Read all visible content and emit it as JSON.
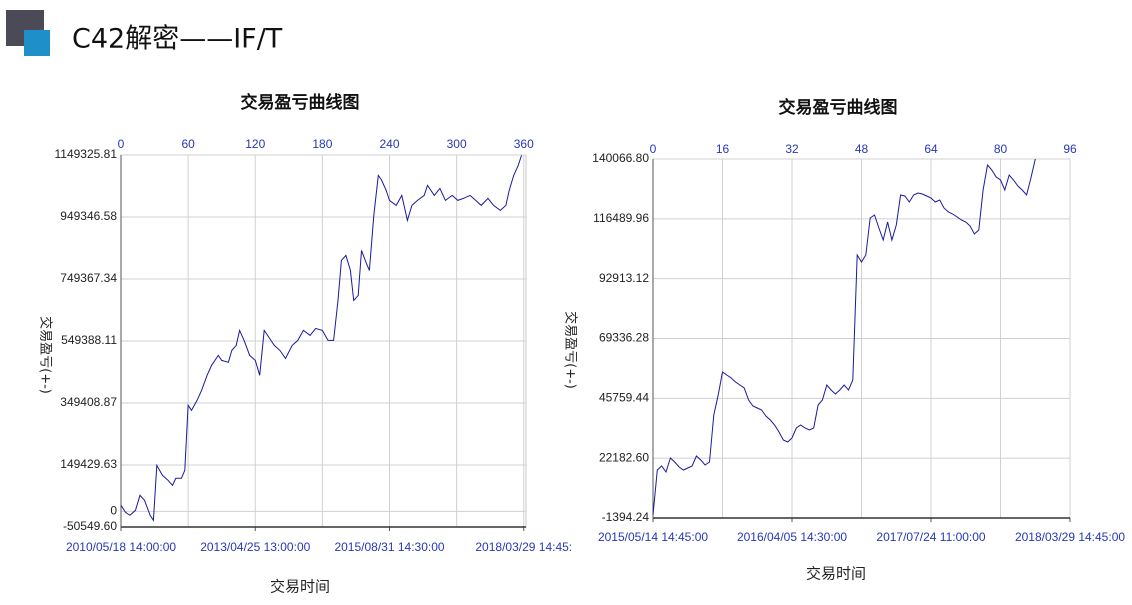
{
  "header": {
    "title": "C42解密——IF/T"
  },
  "chart_data": [
    {
      "type": "line",
      "title": "交易盈亏曲线图",
      "x_label": "交易时间",
      "y_label": "交易盈亏(+-)",
      "color": "#1a1a9c",
      "grid": true,
      "xlim": [
        0,
        362
      ],
      "xticks": [
        0,
        60,
        120,
        180,
        240,
        300,
        360
      ],
      "date_ticks": [
        {
          "value": 0,
          "label": "2010/05/18 14:00:00"
        },
        {
          "value": 120,
          "label": "2013/04/25 13:00:00"
        },
        {
          "value": 240,
          "label": "2015/08/31 14:30:00"
        },
        {
          "value": 360,
          "label": "2018/03/29 14:45:"
        }
      ],
      "ylim": [
        -50549.6,
        1149325.81
      ],
      "yticks": [
        {
          "value": -50549.6,
          "label": "-50549.60"
        },
        0,
        149429.63,
        349408.87,
        549388.11,
        749367.34,
        949346.58,
        1149325.81
      ],
      "x": [
        0,
        4,
        8,
        13,
        17,
        21,
        26,
        29,
        32,
        37,
        42,
        46,
        49,
        54,
        57,
        60,
        63,
        68,
        72,
        77,
        81,
        87,
        90,
        96,
        99,
        103,
        106,
        110,
        115,
        120,
        124,
        128,
        131,
        137,
        142,
        147,
        153,
        158,
        163,
        169,
        174,
        180,
        185,
        190,
        194,
        197,
        201,
        205,
        208,
        212,
        215,
        219,
        222,
        226,
        230,
        233,
        237,
        240,
        246,
        251,
        256,
        260,
        265,
        271,
        274,
        280,
        285,
        290,
        296,
        301,
        306,
        312,
        317,
        322,
        328,
        333,
        339,
        344,
        347,
        351,
        355,
        358
      ],
      "values": [
        19350,
        -3225,
        -12900,
        3225,
        51600,
        35475,
        -12900,
        -29025,
        148350,
        116100,
        99975,
        83850,
        106425,
        106425,
        132225,
        341850,
        325725,
        357975,
        390225,
        438600,
        470850,
        503100,
        486975,
        480525,
        519225,
        535350,
        583725,
        551475,
        503100,
        486975,
        438600,
        583725,
        567600,
        535350,
        519225,
        493425,
        535350,
        551475,
        583725,
        567600,
        590175,
        583725,
        551475,
        551475,
        680475,
        809475,
        825600,
        777225,
        680475,
        696600,
        841725,
        803025,
        777225,
        954600,
        1083600,
        1067475,
        1035225,
        1002975,
        986850,
        1019100,
        938475,
        986850,
        1002975,
        1019100,
        1051350,
        1019100,
        1041675,
        1002975,
        1019100,
        1002975,
        1009425,
        1019100,
        1002975,
        986850,
        1009425,
        986850,
        970725,
        986850,
        1035225,
        1083600,
        1115850,
        1148100
      ]
    },
    {
      "type": "line",
      "title": "交易盈亏曲线图",
      "x_label": "交易时间",
      "y_label": "交易盈亏(+-)",
      "color": "#1a1a9c",
      "grid": true,
      "xlim": [
        0,
        96
      ],
      "xticks": [
        0,
        16,
        32,
        48,
        64,
        80,
        96
      ],
      "date_ticks": [
        {
          "value": 0,
          "label": "2015/05/14 14:45:00"
        },
        {
          "value": 32,
          "label": "2016/04/05 14:30:00"
        },
        {
          "value": 64,
          "label": "2017/07/24 11:00:00"
        },
        {
          "value": 96,
          "label": "2018/03/29 14:45:00"
        }
      ],
      "ylim": [
        -1394.24,
        140066.8
      ],
      "yticks": [
        -1394.24,
        {
          "value": 22182.6,
          "label": "22182.60"
        },
        45759.44,
        69336.28,
        92913.12,
        116489.96,
        {
          "value": 140066.8,
          "label": "140066.80"
        }
      ],
      "x": [
        0,
        1,
        2,
        3,
        4,
        5,
        6,
        7,
        8,
        9,
        10,
        11,
        12,
        13,
        14,
        15,
        16,
        17,
        18,
        19,
        20,
        21,
        22,
        23,
        24,
        25,
        26,
        27,
        28,
        29,
        30,
        31,
        32,
        33,
        34,
        35,
        36,
        37,
        38,
        39,
        40,
        41,
        42,
        43,
        44,
        45,
        46,
        47,
        48,
        49,
        50,
        51,
        52,
        53,
        54,
        55,
        56,
        57,
        58,
        59,
        60,
        61,
        62,
        63,
        64,
        65,
        66,
        67,
        68,
        69,
        70,
        71,
        72,
        73,
        74,
        75,
        76,
        77,
        78,
        79,
        80,
        81,
        82,
        83,
        84,
        85,
        86,
        87,
        88
      ],
      "values": [
        -210,
        17520,
        19100,
        16730,
        22250,
        20670,
        18700,
        17520,
        18310,
        19100,
        23040,
        21460,
        19490,
        20670,
        39190,
        47070,
        56140,
        54960,
        53770,
        52200,
        51020,
        49830,
        45100,
        42740,
        41950,
        41160,
        38800,
        37220,
        35250,
        32490,
        29340,
        28550,
        30130,
        34070,
        35250,
        34070,
        33280,
        34070,
        43130,
        45100,
        51020,
        49040,
        47470,
        49040,
        51020,
        49040,
        52990,
        102240,
        99480,
        102240,
        116820,
        118000,
        112880,
        108150,
        115250,
        108150,
        114070,
        125890,
        125490,
        123130,
        125890,
        126670,
        126280,
        125490,
        124700,
        123130,
        123920,
        120760,
        119190,
        118400,
        117220,
        116030,
        115250,
        113670,
        110520,
        112100,
        127860,
        137710,
        135740,
        132980,
        131800,
        127860,
        133770,
        131800,
        129430,
        127860,
        125890,
        132590,
        140060
      ]
    }
  ]
}
